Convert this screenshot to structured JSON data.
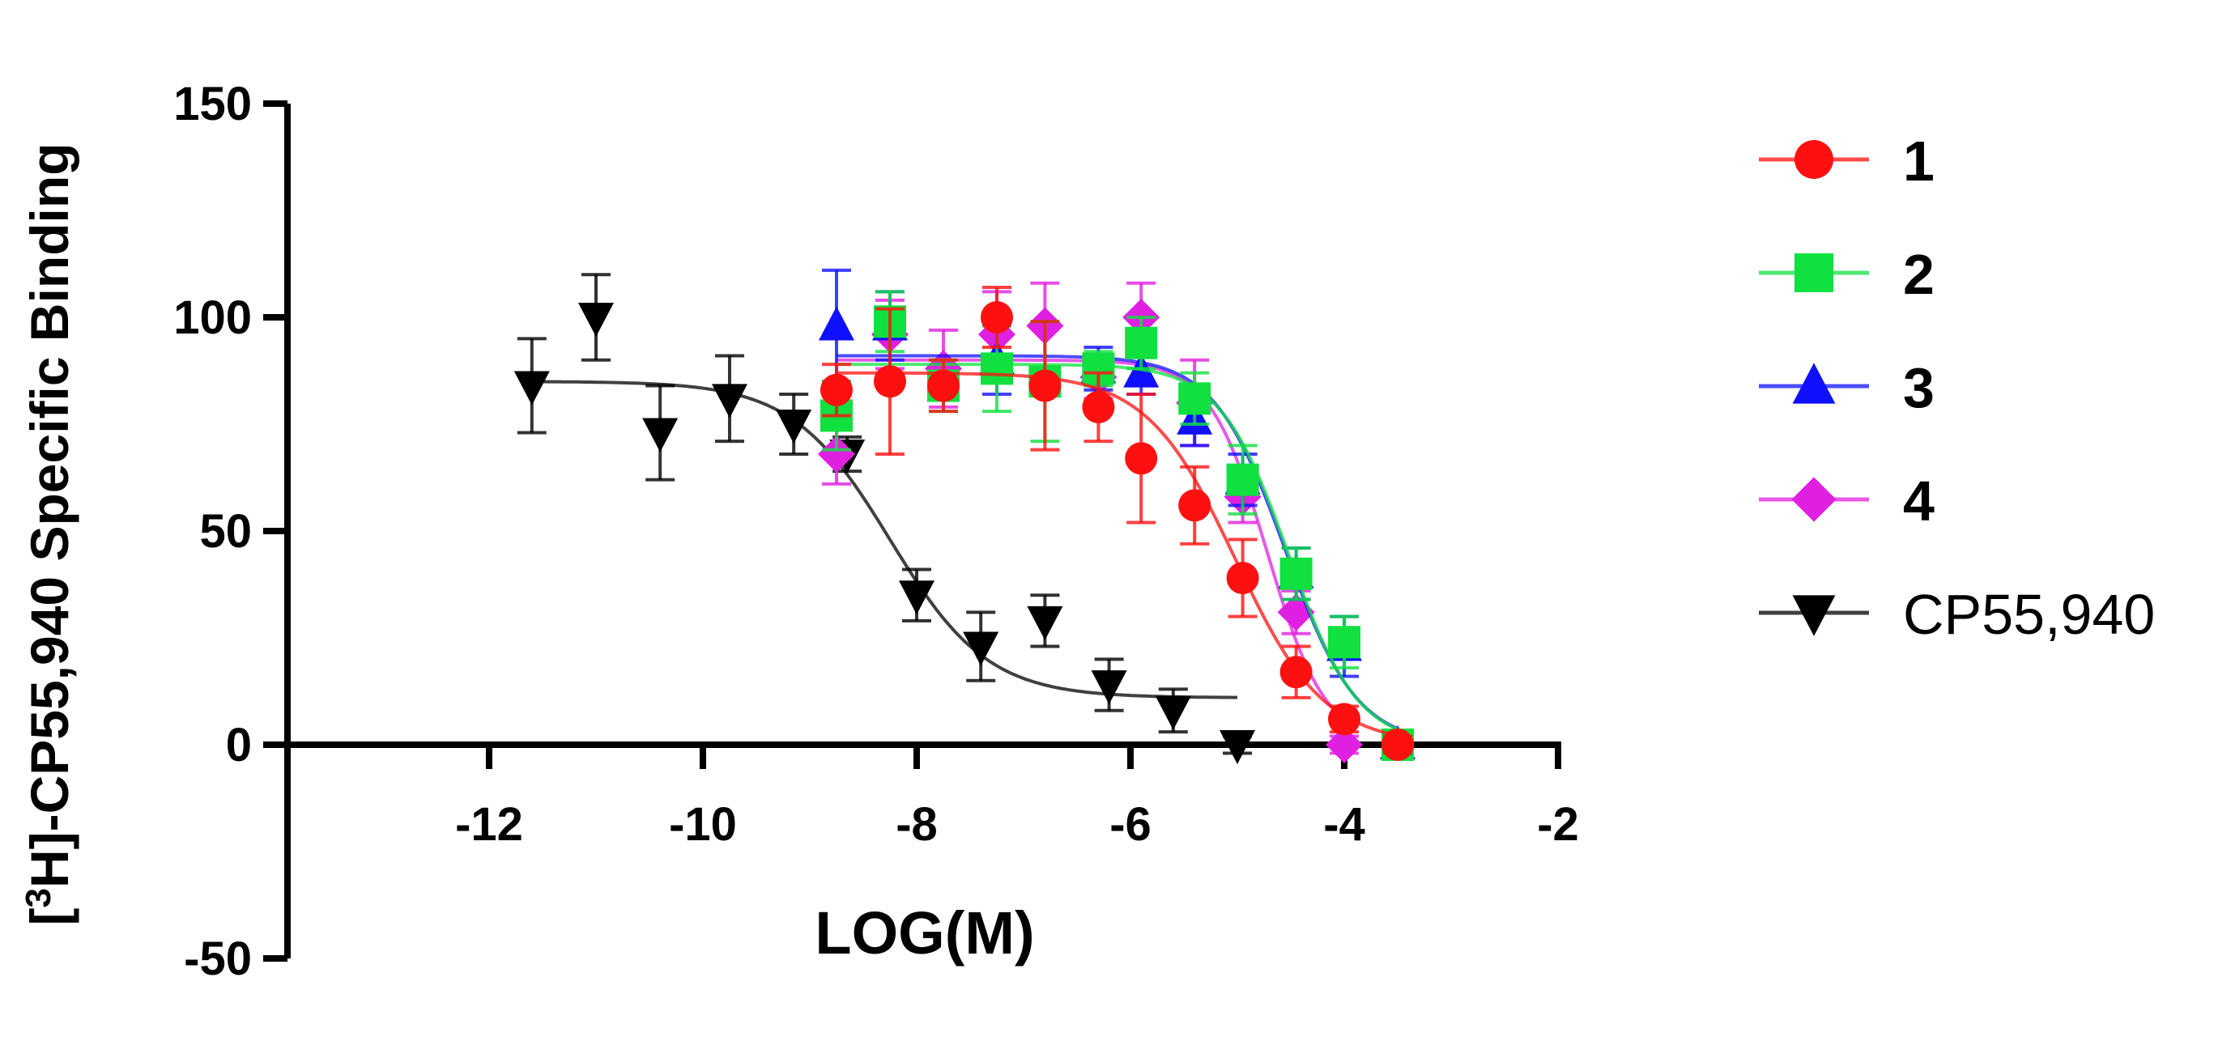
{
  "chart_data": {
    "type": "scatter",
    "title": "",
    "xlabel": "LOG(M)",
    "ylabel": {
      "prefix": "[",
      "sup": "3",
      "rest": "H]-CP55,940 Specific Binding"
    },
    "xlim": [
      -14,
      -2
    ],
    "ylim": [
      -50,
      150
    ],
    "xticks": [
      -12,
      -10,
      -8,
      -6,
      -4,
      -2
    ],
    "yticks": [
      -50,
      0,
      50,
      100,
      150
    ],
    "legend_position": "right",
    "series": [
      {
        "name": "CP55,940",
        "label_style": "plain",
        "color": "#000000",
        "marker": "triangle-down",
        "fit": {
          "top": 85,
          "bottom": 11,
          "logIC50": -8.25,
          "hill": -0.95,
          "xrange": [
            -11.6,
            -5.0
          ]
        },
        "points": [
          {
            "x": -11.6,
            "y": 84,
            "err": 11
          },
          {
            "x": -11.0,
            "y": 100,
            "err": 10
          },
          {
            "x": -10.4,
            "y": 73,
            "err": 11
          },
          {
            "x": -9.75,
            "y": 81,
            "err": 10
          },
          {
            "x": -9.15,
            "y": 75,
            "err": 7
          },
          {
            "x": -8.65,
            "y": 68,
            "err": 4
          },
          {
            "x": -8.0,
            "y": 35,
            "err": 6
          },
          {
            "x": -7.4,
            "y": 23,
            "err": 8
          },
          {
            "x": -6.8,
            "y": 29,
            "err": 6
          },
          {
            "x": -6.2,
            "y": 14,
            "err": 6
          },
          {
            "x": -5.6,
            "y": 8,
            "err": 5
          },
          {
            "x": -5.0,
            "y": 0,
            "err": 2
          }
        ]
      },
      {
        "name": "4",
        "label_style": "bold",
        "color": "#e020e0",
        "marker": "diamond",
        "fit": {
          "top": 90,
          "bottom": 0,
          "logIC50": -4.72,
          "hill": -1.6,
          "xrange": [
            -8.75,
            -4.0
          ]
        },
        "points": [
          {
            "x": -8.75,
            "y": 68,
            "err": 7
          },
          {
            "x": -8.25,
            "y": 96,
            "err": 8
          },
          {
            "x": -7.75,
            "y": 88,
            "err": 9
          },
          {
            "x": -7.25,
            "y": 96,
            "err": 10
          },
          {
            "x": -6.8,
            "y": 98,
            "err": 10
          },
          {
            "x": -6.3,
            "y": 86,
            "err": 5
          },
          {
            "x": -5.9,
            "y": 100,
            "err": 8
          },
          {
            "x": -5.4,
            "y": 80,
            "err": 10
          },
          {
            "x": -4.95,
            "y": 58,
            "err": 6
          },
          {
            "x": -4.45,
            "y": 31,
            "err": 5
          },
          {
            "x": -4.0,
            "y": 0,
            "err": 2
          }
        ]
      },
      {
        "name": "3",
        "label_style": "bold",
        "color": "#1010ff",
        "marker": "triangle-up",
        "fit": {
          "top": 91,
          "bottom": 0,
          "logIC50": -4.55,
          "hill": -1.3,
          "xrange": [
            -8.75,
            -3.5
          ]
        },
        "points": [
          {
            "x": -8.75,
            "y": 98,
            "err": 13
          },
          {
            "x": -8.25,
            "y": 98,
            "err": 8
          },
          {
            "x": -7.25,
            "y": 90,
            "err": 8
          },
          {
            "x": -6.3,
            "y": 88,
            "err": 5
          },
          {
            "x": -5.9,
            "y": 87,
            "err": 5
          },
          {
            "x": -5.4,
            "y": 76,
            "err": 6
          },
          {
            "x": -4.95,
            "y": 62,
            "err": 6
          },
          {
            "x": -4.45,
            "y": 40,
            "err": 6
          },
          {
            "x": -4.0,
            "y": 23,
            "err": 7
          },
          {
            "x": -3.5,
            "y": 0,
            "err": 2
          }
        ]
      },
      {
        "name": "2",
        "label_style": "bold",
        "color": "#10e040",
        "marker": "square",
        "fit": {
          "top": 89,
          "bottom": 0,
          "logIC50": -4.52,
          "hill": -1.35,
          "xrange": [
            -8.75,
            -3.5
          ]
        },
        "points": [
          {
            "x": -8.75,
            "y": 77,
            "err": 8
          },
          {
            "x": -8.25,
            "y": 99,
            "err": 7
          },
          {
            "x": -7.75,
            "y": 84,
            "err": 6
          },
          {
            "x": -7.25,
            "y": 88,
            "err": 10
          },
          {
            "x": -6.8,
            "y": 85,
            "err": 14
          },
          {
            "x": -6.3,
            "y": 88,
            "err": 4
          },
          {
            "x": -5.9,
            "y": 94,
            "err": 6
          },
          {
            "x": -5.4,
            "y": 81,
            "err": 6
          },
          {
            "x": -4.95,
            "y": 62,
            "err": 8
          },
          {
            "x": -4.45,
            "y": 40,
            "err": 6
          },
          {
            "x": -4.0,
            "y": 24,
            "err": 6
          },
          {
            "x": -3.5,
            "y": 0,
            "err": 2
          }
        ]
      },
      {
        "name": "1",
        "label_style": "bold",
        "color": "#ff1010",
        "marker": "circle",
        "fit": {
          "top": 87,
          "bottom": 0,
          "logIC50": -5.02,
          "hill": -1.05,
          "xrange": [
            -8.75,
            -3.5
          ]
        },
        "points": [
          {
            "x": -8.75,
            "y": 83,
            "err": 6
          },
          {
            "x": -8.25,
            "y": 85,
            "err": 17
          },
          {
            "x": -7.75,
            "y": 84,
            "err": 6
          },
          {
            "x": -7.25,
            "y": 100,
            "err": 7
          },
          {
            "x": -6.8,
            "y": 84,
            "err": 15
          },
          {
            "x": -6.3,
            "y": 79,
            "err": 8
          },
          {
            "x": -5.9,
            "y": 67,
            "err": 15
          },
          {
            "x": -5.4,
            "y": 56,
            "err": 9
          },
          {
            "x": -4.95,
            "y": 39,
            "err": 9
          },
          {
            "x": -4.45,
            "y": 17,
            "err": 6
          },
          {
            "x": -4.0,
            "y": 6,
            "err": 3
          },
          {
            "x": -3.5,
            "y": 0,
            "err": 2
          }
        ]
      }
    ],
    "legend_order": [
      "1",
      "2",
      "3",
      "4",
      "CP55,940"
    ]
  }
}
